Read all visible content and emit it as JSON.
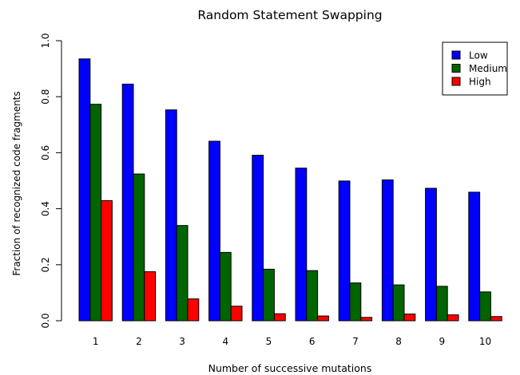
{
  "chart_data": {
    "type": "bar",
    "title": "Random Statement Swapping",
    "xlabel": "Number of successive mutations",
    "ylabel": "Fraction of recognized code fragments",
    "categories": [
      "1",
      "2",
      "3",
      "4",
      "5",
      "6",
      "7",
      "8",
      "9",
      "10"
    ],
    "ylim": [
      0,
      1.0
    ],
    "yticks": [
      "0.0",
      "0.2",
      "0.4",
      "0.6",
      "0.8",
      "1.0"
    ],
    "legend_position": "top-right",
    "grid": false,
    "series": [
      {
        "name": "Low",
        "color": "#0000ff",
        "values": [
          0.935,
          0.845,
          0.753,
          0.641,
          0.591,
          0.545,
          0.499,
          0.503,
          0.473,
          0.459
        ]
      },
      {
        "name": "Medium",
        "color": "#006400",
        "values": [
          0.773,
          0.524,
          0.34,
          0.244,
          0.184,
          0.179,
          0.135,
          0.128,
          0.123,
          0.103
        ]
      },
      {
        "name": "High",
        "color": "#ff0000",
        "values": [
          0.429,
          0.175,
          0.078,
          0.052,
          0.025,
          0.017,
          0.012,
          0.024,
          0.021,
          0.015
        ]
      }
    ]
  }
}
